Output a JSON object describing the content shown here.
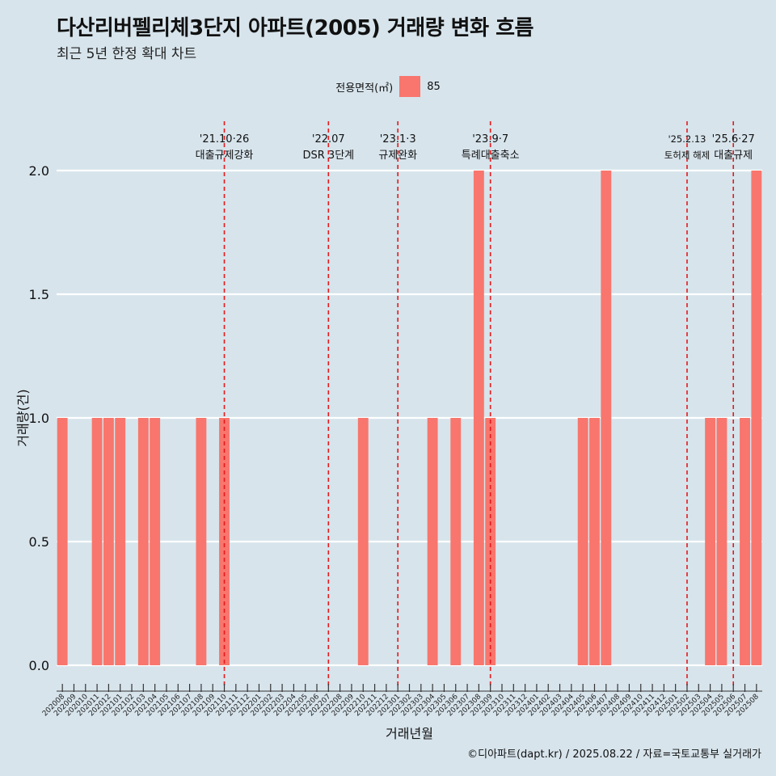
{
  "title": "다산리버펠리체3단지 아파트(2005) 거래량 변화 흐름",
  "subtitle": "최근 5년 한정 확대 차트",
  "legend": {
    "title": "전용면적(㎡)",
    "label": "85",
    "color": "#f8766d"
  },
  "caption": "©디아파트(dapt.kr) / 2025.08.22 / 자료=국토교통부 실거래가",
  "colors": {
    "background": "#d7e4ec",
    "grid": "#ffffff",
    "bar": "#f8766d",
    "vline": "#e41a1c"
  },
  "chart_data": {
    "type": "bar",
    "xlabel": "거래년월",
    "ylabel": "거래량(건)",
    "ylim": [
      0,
      2
    ],
    "yticks": [
      "0.0",
      "0.5",
      "1.0",
      "1.5",
      "2.0"
    ],
    "categories": [
      "202008",
      "202009",
      "202010",
      "202011",
      "202012",
      "202101",
      "202102",
      "202103",
      "202104",
      "202105",
      "202106",
      "202107",
      "202108",
      "202109",
      "202110",
      "202111",
      "202112",
      "202201",
      "202202",
      "202203",
      "202204",
      "202205",
      "202206",
      "202207",
      "202208",
      "202209",
      "202210",
      "202211",
      "202212",
      "202301",
      "202302",
      "202303",
      "202304",
      "202305",
      "202306",
      "202307",
      "202308",
      "202309",
      "202310",
      "202311",
      "202312",
      "202401",
      "202402",
      "202403",
      "202404",
      "202405",
      "202406",
      "202407",
      "202408",
      "202409",
      "202410",
      "202411",
      "202412",
      "202501",
      "202502",
      "202503",
      "202504",
      "202505",
      "202506",
      "202507",
      "202508"
    ],
    "series": [
      {
        "name": "85",
        "values": [
          1,
          0,
          0,
          1,
          1,
          1,
          0,
          1,
          1,
          0,
          0,
          0,
          1,
          0,
          1,
          0,
          0,
          0,
          0,
          0,
          0,
          0,
          0,
          0,
          0,
          0,
          1,
          0,
          0,
          0,
          0,
          0,
          1,
          0,
          1,
          0,
          2,
          1,
          0,
          0,
          0,
          0,
          0,
          0,
          0,
          1,
          1,
          2,
          0,
          0,
          0,
          0,
          0,
          0,
          0,
          0,
          1,
          1,
          0,
          1,
          2
        ]
      }
    ],
    "events": [
      {
        "month": "202110",
        "date": "'21.10·26",
        "label": "대출규제강화"
      },
      {
        "month": "202207",
        "date": "'22.07",
        "label": "DSR 3단계"
      },
      {
        "month": "202301",
        "date": "'23.1·3",
        "label": "규제완화"
      },
      {
        "month": "202309",
        "date": "'23.9·7",
        "label": "특례대출축소"
      },
      {
        "month": "202502",
        "date": "'25.2.13",
        "label": "토허제 해제"
      },
      {
        "month": "202506",
        "date": "'25.6·27",
        "label": "대출규제"
      }
    ]
  }
}
